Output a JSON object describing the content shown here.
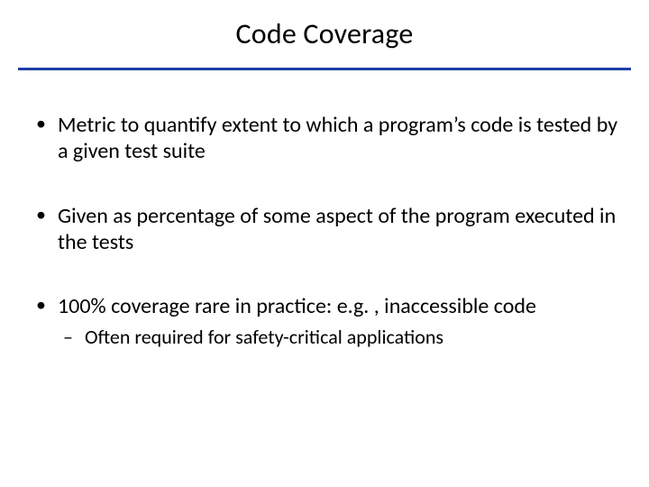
{
  "slide": {
    "title": "Code Coverage",
    "underline_color": "#1f3fa6",
    "background_color": "#ffffff",
    "text_color": "#000000",
    "title_fontsize": 32,
    "body_fontsize": 24,
    "sub_fontsize": 22,
    "bullets": [
      {
        "text": "Metric to quantify extent to which a program’s code is tested by a given test suite",
        "sub": []
      },
      {
        "text": "Given as percentage of some aspect of the program executed in the tests",
        "sub": []
      },
      {
        "text": "100% coverage rare in practice: e.g. , inaccessible code",
        "sub": [
          "Often required for safety-critical applications"
        ]
      }
    ]
  }
}
